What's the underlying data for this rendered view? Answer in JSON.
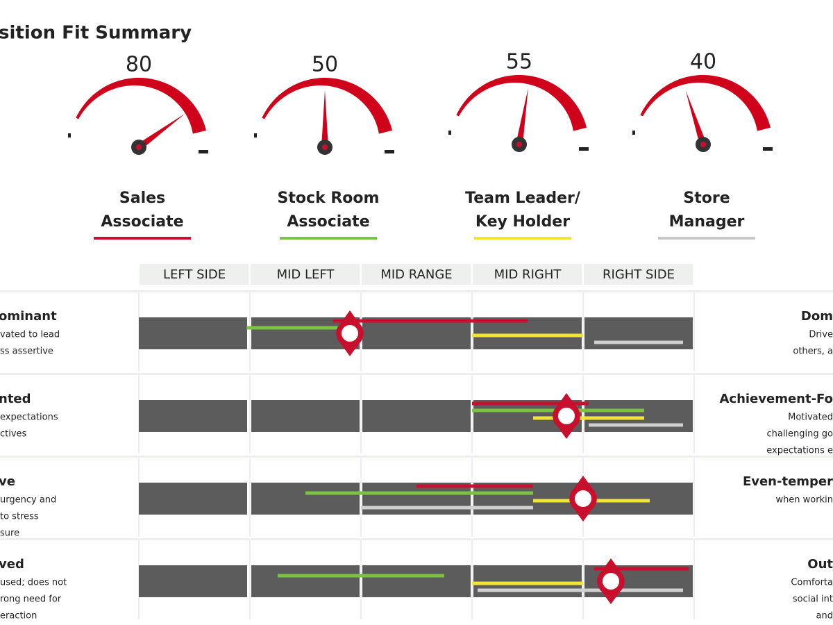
{
  "header": {
    "title": "sition Fit Summary"
  },
  "gauges": [
    {
      "value": 80,
      "label": [
        "Sales",
        "Associate"
      ],
      "color": "#c8102e"
    },
    {
      "value": 50,
      "label": [
        "Stock Room",
        "Associate"
      ],
      "color": "#7dc242"
    },
    {
      "value": 55,
      "label": [
        "Team Leader/",
        "Key Holder"
      ],
      "color": "#f0e437"
    },
    {
      "value": 40,
      "label": [
        "Store",
        "Manager"
      ],
      "color": "#c8c8c8"
    }
  ],
  "columns": [
    "LEFT SIDE",
    "MID LEFT",
    "MID RANGE",
    "MID RIGHT",
    "RIGHT SIDE"
  ],
  "rows": [
    {
      "left": [
        "ominant",
        "vated to lead",
        "ss assertive"
      ],
      "right": [
        "Dom",
        "Drive",
        "others, a"
      ],
      "lines": [
        {
          "color": "#c8102e",
          "range": [
            1.75,
            3.5
          ]
        },
        {
          "color": "#7dc242",
          "range": [
            0.97,
            1.9
          ]
        },
        {
          "color": "#f0e437",
          "range": [
            3.0,
            4.0
          ]
        },
        {
          "color": "#d0d0d0",
          "range": [
            4.1,
            4.9
          ]
        }
      ],
      "marker": 1.9
    },
    {
      "left": [
        "nted",
        "expectations",
        "ctives"
      ],
      "right": [
        "Achievement-Fo",
        "Motivated",
        "challenging go",
        "expectations e"
      ],
      "lines": [
        {
          "color": "#c8102e",
          "range": [
            3.0,
            4.05
          ]
        },
        {
          "color": "#7dc242",
          "range": [
            3.0,
            4.55
          ]
        },
        {
          "color": "#f0e437",
          "range": [
            3.55,
            4.55
          ]
        },
        {
          "color": "#d0d0d0",
          "range": [
            4.05,
            4.9
          ]
        }
      ],
      "marker": 3.85
    },
    {
      "left": [
        "ve",
        "urgency and",
        "to stress",
        "sure"
      ],
      "right": [
        "Even-temper",
        "when workin"
      ],
      "lines": [
        {
          "color": "#c8102e",
          "range": [
            2.5,
            3.55
          ]
        },
        {
          "color": "#7dc242",
          "range": [
            1.5,
            3.55
          ]
        },
        {
          "color": "#f0e437",
          "range": [
            3.55,
            4.6
          ]
        },
        {
          "color": "#d0d0d0",
          "range": [
            2.0,
            3.55
          ]
        }
      ],
      "marker": 4.0
    },
    {
      "left": [
        "ved",
        "used; does not",
        "rong need for",
        "eraction"
      ],
      "right": [
        "Out",
        "Comforta",
        "social int",
        "and"
      ],
      "lines": [
        {
          "color": "#c8102e",
          "range": [
            4.1,
            4.95
          ]
        },
        {
          "color": "#7dc242",
          "range": [
            1.25,
            2.75
          ]
        },
        {
          "color": "#f0e437",
          "range": [
            3.0,
            4.0
          ]
        },
        {
          "color": "#d0d0d0",
          "range": [
            3.05,
            4.9
          ]
        }
      ],
      "marker": 4.25
    }
  ]
}
